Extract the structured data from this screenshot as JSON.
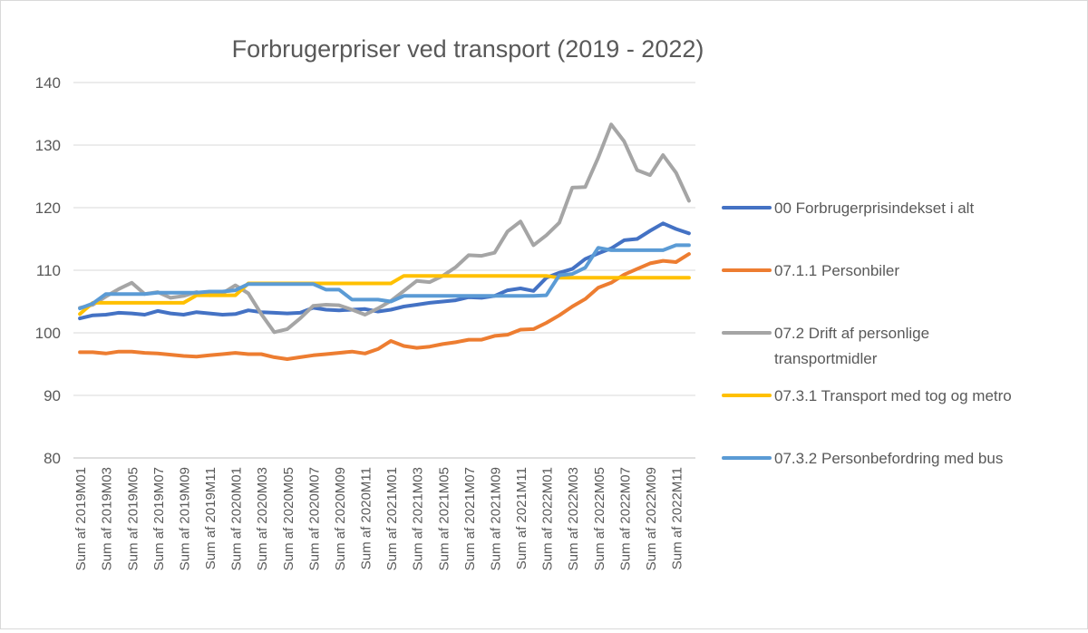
{
  "chart_data": {
    "type": "line",
    "title": "Forbrugerpriser ved transport (2019 - 2022)",
    "xlabel": "",
    "ylabel": "",
    "ylim": [
      80,
      140
    ],
    "yticks": [
      80,
      90,
      100,
      110,
      120,
      130,
      140
    ],
    "grid": true,
    "legend_position": "right",
    "x": [
      "2019M01",
      "2019M02",
      "2019M03",
      "2019M04",
      "2019M05",
      "2019M06",
      "2019M07",
      "2019M08",
      "2019M09",
      "2019M10",
      "2019M11",
      "2019M12",
      "2020M01",
      "2020M02",
      "2020M03",
      "2020M04",
      "2020M05",
      "2020M06",
      "2020M07",
      "2020M08",
      "2020M09",
      "2020M10",
      "2020M11",
      "2020M12",
      "2021M01",
      "2021M02",
      "2021M03",
      "2021M04",
      "2021M05",
      "2021M06",
      "2021M07",
      "2021M08",
      "2021M09",
      "2021M10",
      "2021M11",
      "2021M12",
      "2022M01",
      "2022M02",
      "2022M03",
      "2022M04",
      "2022M05",
      "2022M06",
      "2022M07",
      "2022M08",
      "2022M09",
      "2022M10",
      "2022M11",
      "2022M12"
    ],
    "x_tick_labels": [
      "Sum af 2019M01",
      "Sum af 2019M03",
      "Sum af 2019M05",
      "Sum af 2019M07",
      "Sum af 2019M09",
      "Sum af 2019M11",
      "Sum af 2020M01",
      "Sum af 2020M03",
      "Sum af 2020M05",
      "Sum af 2020M07",
      "Sum af 2020M09",
      "Sum af 2020M11",
      "Sum af 2021M01",
      "Sum af 2021M03",
      "Sum af 2021M05",
      "Sum af 2021M07",
      "Sum af 2021M09",
      "Sum af 2021M11",
      "Sum af 2022M01",
      "Sum af 2022M03",
      "Sum af 2022M05",
      "Sum af 2022M07",
      "Sum af 2022M09",
      "Sum af 2022M11"
    ],
    "series": [
      {
        "name": "00 Forbrugerprisindekset i alt",
        "color": "#4472C4",
        "values": [
          102.3,
          102.8,
          102.9,
          103.2,
          103.1,
          102.9,
          103.5,
          103.1,
          102.9,
          103.3,
          103.1,
          102.9,
          103.0,
          103.6,
          103.3,
          103.2,
          103.1,
          103.2,
          104.0,
          103.7,
          103.6,
          103.7,
          103.8,
          103.4,
          103.7,
          104.2,
          104.5,
          104.8,
          105.0,
          105.2,
          105.7,
          105.6,
          105.9,
          106.8,
          107.1,
          106.7,
          108.8,
          109.6,
          110.2,
          111.8,
          112.7,
          113.5,
          114.8,
          115.0,
          116.3,
          117.5,
          116.6,
          115.9
        ]
      },
      {
        "name": "07.1.1 Personbiler",
        "color": "#ED7D31",
        "values": [
          96.9,
          96.9,
          96.7,
          97.0,
          97.0,
          96.8,
          96.7,
          96.5,
          96.3,
          96.2,
          96.4,
          96.6,
          96.8,
          96.6,
          96.6,
          96.1,
          95.8,
          96.1,
          96.4,
          96.6,
          96.8,
          97.0,
          96.7,
          97.4,
          98.7,
          97.9,
          97.6,
          97.8,
          98.2,
          98.5,
          98.9,
          98.9,
          99.5,
          99.7,
          100.5,
          100.6,
          101.6,
          102.8,
          104.2,
          105.4,
          107.2,
          108.0,
          109.3,
          110.2,
          111.1,
          111.5,
          111.3,
          112.6
        ]
      },
      {
        "name": "07.2 Drift af personlige transportmidler",
        "color": "#A5A5A5",
        "values": [
          104.0,
          104.5,
          105.8,
          107.0,
          108.0,
          106.2,
          106.5,
          105.6,
          105.9,
          106.5,
          106.0,
          106.3,
          107.6,
          106.3,
          103.0,
          100.1,
          100.6,
          102.3,
          104.3,
          104.5,
          104.4,
          103.7,
          102.9,
          103.9,
          105.1,
          106.7,
          108.3,
          108.1,
          109.1,
          110.5,
          112.4,
          112.3,
          112.8,
          116.2,
          117.8,
          114.0,
          115.6,
          117.6,
          123.2,
          123.3,
          128.0,
          133.3,
          130.6,
          126.0,
          125.2,
          128.4,
          125.6,
          121.1
        ]
      },
      {
        "name": "07.3.1 Transport med tog og metro",
        "color": "#FFC000",
        "values": [
          103.0,
          104.8,
          104.8,
          104.8,
          104.8,
          104.8,
          104.8,
          104.8,
          104.8,
          106.0,
          106.0,
          106.0,
          106.0,
          107.9,
          107.9,
          107.9,
          107.9,
          107.9,
          107.9,
          107.9,
          107.9,
          107.9,
          107.9,
          107.9,
          107.9,
          109.1,
          109.1,
          109.1,
          109.1,
          109.1,
          109.1,
          109.1,
          109.1,
          109.1,
          109.1,
          109.1,
          109.1,
          108.8,
          108.8,
          108.8,
          108.8,
          108.8,
          108.8,
          108.8,
          108.8,
          108.8,
          108.8,
          108.8
        ]
      },
      {
        "name": "07.3.2 Personbefordring med bus",
        "color": "#5B9BD5",
        "values": [
          103.9,
          104.7,
          106.2,
          106.2,
          106.2,
          106.2,
          106.4,
          106.4,
          106.4,
          106.4,
          106.6,
          106.6,
          106.8,
          107.8,
          107.8,
          107.8,
          107.8,
          107.8,
          107.8,
          106.9,
          106.9,
          105.3,
          105.3,
          105.3,
          105.0,
          105.9,
          105.9,
          105.9,
          105.9,
          105.9,
          105.9,
          105.9,
          105.9,
          105.9,
          105.9,
          105.9,
          106.0,
          109.2,
          109.4,
          110.4,
          113.6,
          113.2,
          113.2,
          113.2,
          113.2,
          113.2,
          114.0,
          114.0
        ]
      }
    ],
    "legend": [
      [
        "00 Forbrugerprisindekset i alt"
      ],
      [
        "07.1.1 Personbiler"
      ],
      [
        "07.2 Drift af personlige",
        "transportmidler"
      ],
      [
        "07.3.1 Transport med tog og metro"
      ],
      [
        "07.3.2 Personbefordring med bus"
      ]
    ]
  }
}
